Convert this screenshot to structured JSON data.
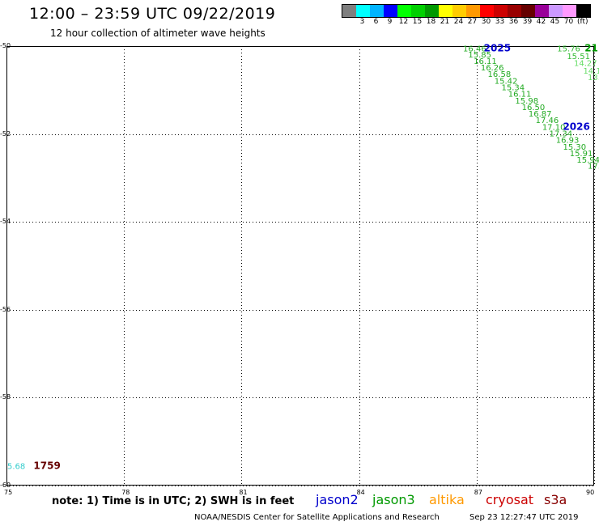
{
  "header": {
    "title": "12:00 – 23:59 UTC 09/22/2019",
    "subtitle": "12 hour collection of altimeter wave heights"
  },
  "legend": {
    "unit": "(ft)",
    "items": [
      {
        "color": "#7f7f7f",
        "label": ""
      },
      {
        "color": "#00ffff",
        "label": "3"
      },
      {
        "color": "#00b4ff",
        "label": "6"
      },
      {
        "color": "#0000ff",
        "label": "9"
      },
      {
        "color": "#00ff00",
        "label": "12"
      },
      {
        "color": "#00d000",
        "label": "15"
      },
      {
        "color": "#009900",
        "label": "18"
      },
      {
        "color": "#ffff00",
        "label": "21"
      },
      {
        "color": "#ffcc00",
        "label": "24"
      },
      {
        "color": "#ff9900",
        "label": "27"
      },
      {
        "color": "#ff0000",
        "label": "30"
      },
      {
        "color": "#cc0000",
        "label": "33"
      },
      {
        "color": "#990000",
        "label": "36"
      },
      {
        "color": "#660000",
        "label": "39"
      },
      {
        "color": "#990099",
        "label": "42"
      },
      {
        "color": "#cc99ff",
        "label": "45"
      },
      {
        "color": "#ff99ff",
        "label": "70"
      },
      {
        "color": "#000000",
        "label": ""
      }
    ]
  },
  "map": {
    "lon_range": [
      75,
      90
    ],
    "lat_range": [
      -60,
      -50
    ],
    "x_ticks": [
      "75",
      "78",
      "81",
      "84",
      "87",
      "90"
    ],
    "y_ticks": [
      "-50",
      "-52",
      "-54",
      "-56",
      "-58",
      "-60"
    ],
    "grid": "dotted",
    "tracks": [
      {
        "satellite": "jason3",
        "time_label": "2025",
        "time_color": "#0000cc",
        "readings": [
          {
            "lon": 86.95,
            "lat": -50.05,
            "text": "16.46",
            "color": "#22aa22"
          },
          {
            "lon": 87.08,
            "lat": -50.18,
            "text": "15.85",
            "color": "#22aa22"
          },
          {
            "lon": 87.22,
            "lat": -50.33,
            "text": "16.11",
            "color": "#22aa22"
          },
          {
            "lon": 87.4,
            "lat": -50.48,
            "text": "16.26",
            "color": "#22aa22"
          },
          {
            "lon": 87.58,
            "lat": -50.63,
            "text": "16.58",
            "color": "#22aa22"
          },
          {
            "lon": 87.75,
            "lat": -50.78,
            "text": "15.42",
            "color": "#22aa22"
          },
          {
            "lon": 87.93,
            "lat": -50.93,
            "text": "15.34",
            "color": "#22aa22"
          },
          {
            "lon": 88.1,
            "lat": -51.08,
            "text": "16.11",
            "color": "#22aa22"
          },
          {
            "lon": 88.28,
            "lat": -51.23,
            "text": "15.98",
            "color": "#22aa22"
          },
          {
            "lon": 88.45,
            "lat": -51.38,
            "text": "16.50",
            "color": "#22aa22"
          },
          {
            "lon": 88.62,
            "lat": -51.53,
            "text": "16.87",
            "color": "#22aa22"
          },
          {
            "lon": 88.8,
            "lat": -51.68,
            "text": "17.46",
            "color": "#22aa22"
          }
        ]
      },
      {
        "satellite": "jason3",
        "time_label": "2026",
        "time_color": "#0000cc",
        "readings": [
          {
            "lon": 88.97,
            "lat": -51.83,
            "text": "17.10",
            "color": "#22aa22"
          },
          {
            "lon": 89.15,
            "lat": -51.98,
            "text": "17.34",
            "color": "#22aa22"
          },
          {
            "lon": 89.32,
            "lat": -52.13,
            "text": "16.93",
            "color": "#22aa22"
          },
          {
            "lon": 89.5,
            "lat": -52.28,
            "text": "15.30",
            "color": "#22aa22"
          },
          {
            "lon": 89.67,
            "lat": -52.43,
            "text": "15.91",
            "color": "#22aa22"
          },
          {
            "lon": 89.85,
            "lat": -52.58,
            "text": "15.94",
            "color": "#22aa22"
          },
          {
            "lon": 90.0,
            "lat": -52.72,
            "text": "17.",
            "color": "#22aa22"
          }
        ]
      },
      {
        "satellite": "jason3",
        "time_label": "21",
        "time_color": "#009900",
        "readings": [
          {
            "lon": 89.35,
            "lat": -50.05,
            "text": "15.76",
            "color": "#33bb33"
          },
          {
            "lon": 89.6,
            "lat": -50.22,
            "text": "15.51",
            "color": "#33bb33"
          },
          {
            "lon": 89.78,
            "lat": -50.38,
            "text": "14.27",
            "color": "#66dd66"
          },
          {
            "lon": 89.95,
            "lat": -50.55,
            "text": "14.1",
            "color": "#66dd66"
          },
          {
            "lon": 90.0,
            "lat": -50.7,
            "text": "13.",
            "color": "#66dd66"
          }
        ]
      },
      {
        "satellite": "cryosat",
        "time_label": "1759",
        "time_color": "#660000",
        "readings": [
          {
            "lon": 75.25,
            "lat": -59.55,
            "text": "5.68",
            "color": "#33cccc"
          }
        ]
      }
    ]
  },
  "satellites": [
    {
      "name": "jason2",
      "color": "#0000cc"
    },
    {
      "name": "jason3",
      "color": "#009900"
    },
    {
      "name": "altika",
      "color": "#ff9900"
    },
    {
      "name": "cryosat",
      "color": "#cc0000"
    },
    {
      "name": "s3a",
      "color": "#880000"
    }
  ],
  "footer": {
    "note": "note: 1) Time is in UTC; 2) SWH is in feet",
    "credit": "NOAA/NESDIS Center for Satellite Applications and Research",
    "timestamp": "Sep 23 12:27:47 UTC 2019"
  }
}
